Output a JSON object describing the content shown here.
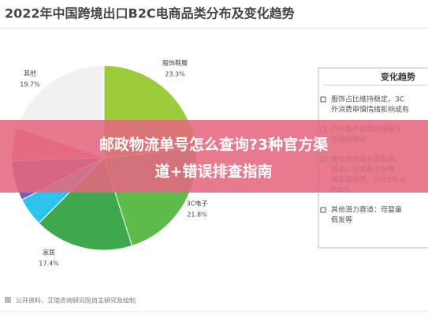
{
  "chart_data": {
    "type": "pie",
    "title": "2022年中国跨境出口B2C电商品类分布及变化趋势",
    "categories": [
      "服饰鞋履",
      "3C电子",
      "家居",
      null,
      null,
      null,
      "其他"
    ],
    "values": [
      23.3,
      21.8,
      17.4,
      5.0,
      7.0,
      5.8,
      19.7
    ],
    "value_labels": [
      "23.3%",
      "21.8%",
      "17.4%",
      null,
      null,
      null,
      "19.7%"
    ],
    "colors": [
      "#9ccb3b",
      "#5cbb4a",
      "#3ea84c",
      "#2ec3ea",
      "#7b5bb6",
      "#e77fa0",
      "#f1f1f1"
    ]
  },
  "panel": {
    "title": "变化趋势",
    "items": [
      {
        "lines": [
          "服饰占比维持稳定，3C",
          "外消费审慎情绪影响或有"
        ]
      },
      {
        "lines": [
          "户外类产品受到健康生",
          "求推动增长"
        ]
      },
      {
        "lines": [
          "美妆作为成长型品类，",
          "商业、拉美和中东等",
          "速发展趋势，2025年占",
          "约8%"
        ]
      },
      {
        "lines": [
          "其他潜力赛道：母婴童",
          "假发等"
        ]
      }
    ]
  },
  "source": "公开资料，艾瑞咨询研究院自主研究及绘制",
  "banner": [
    "邮政物流单号怎么查询?3种官方渠",
    "道+错误排查指南"
  ]
}
